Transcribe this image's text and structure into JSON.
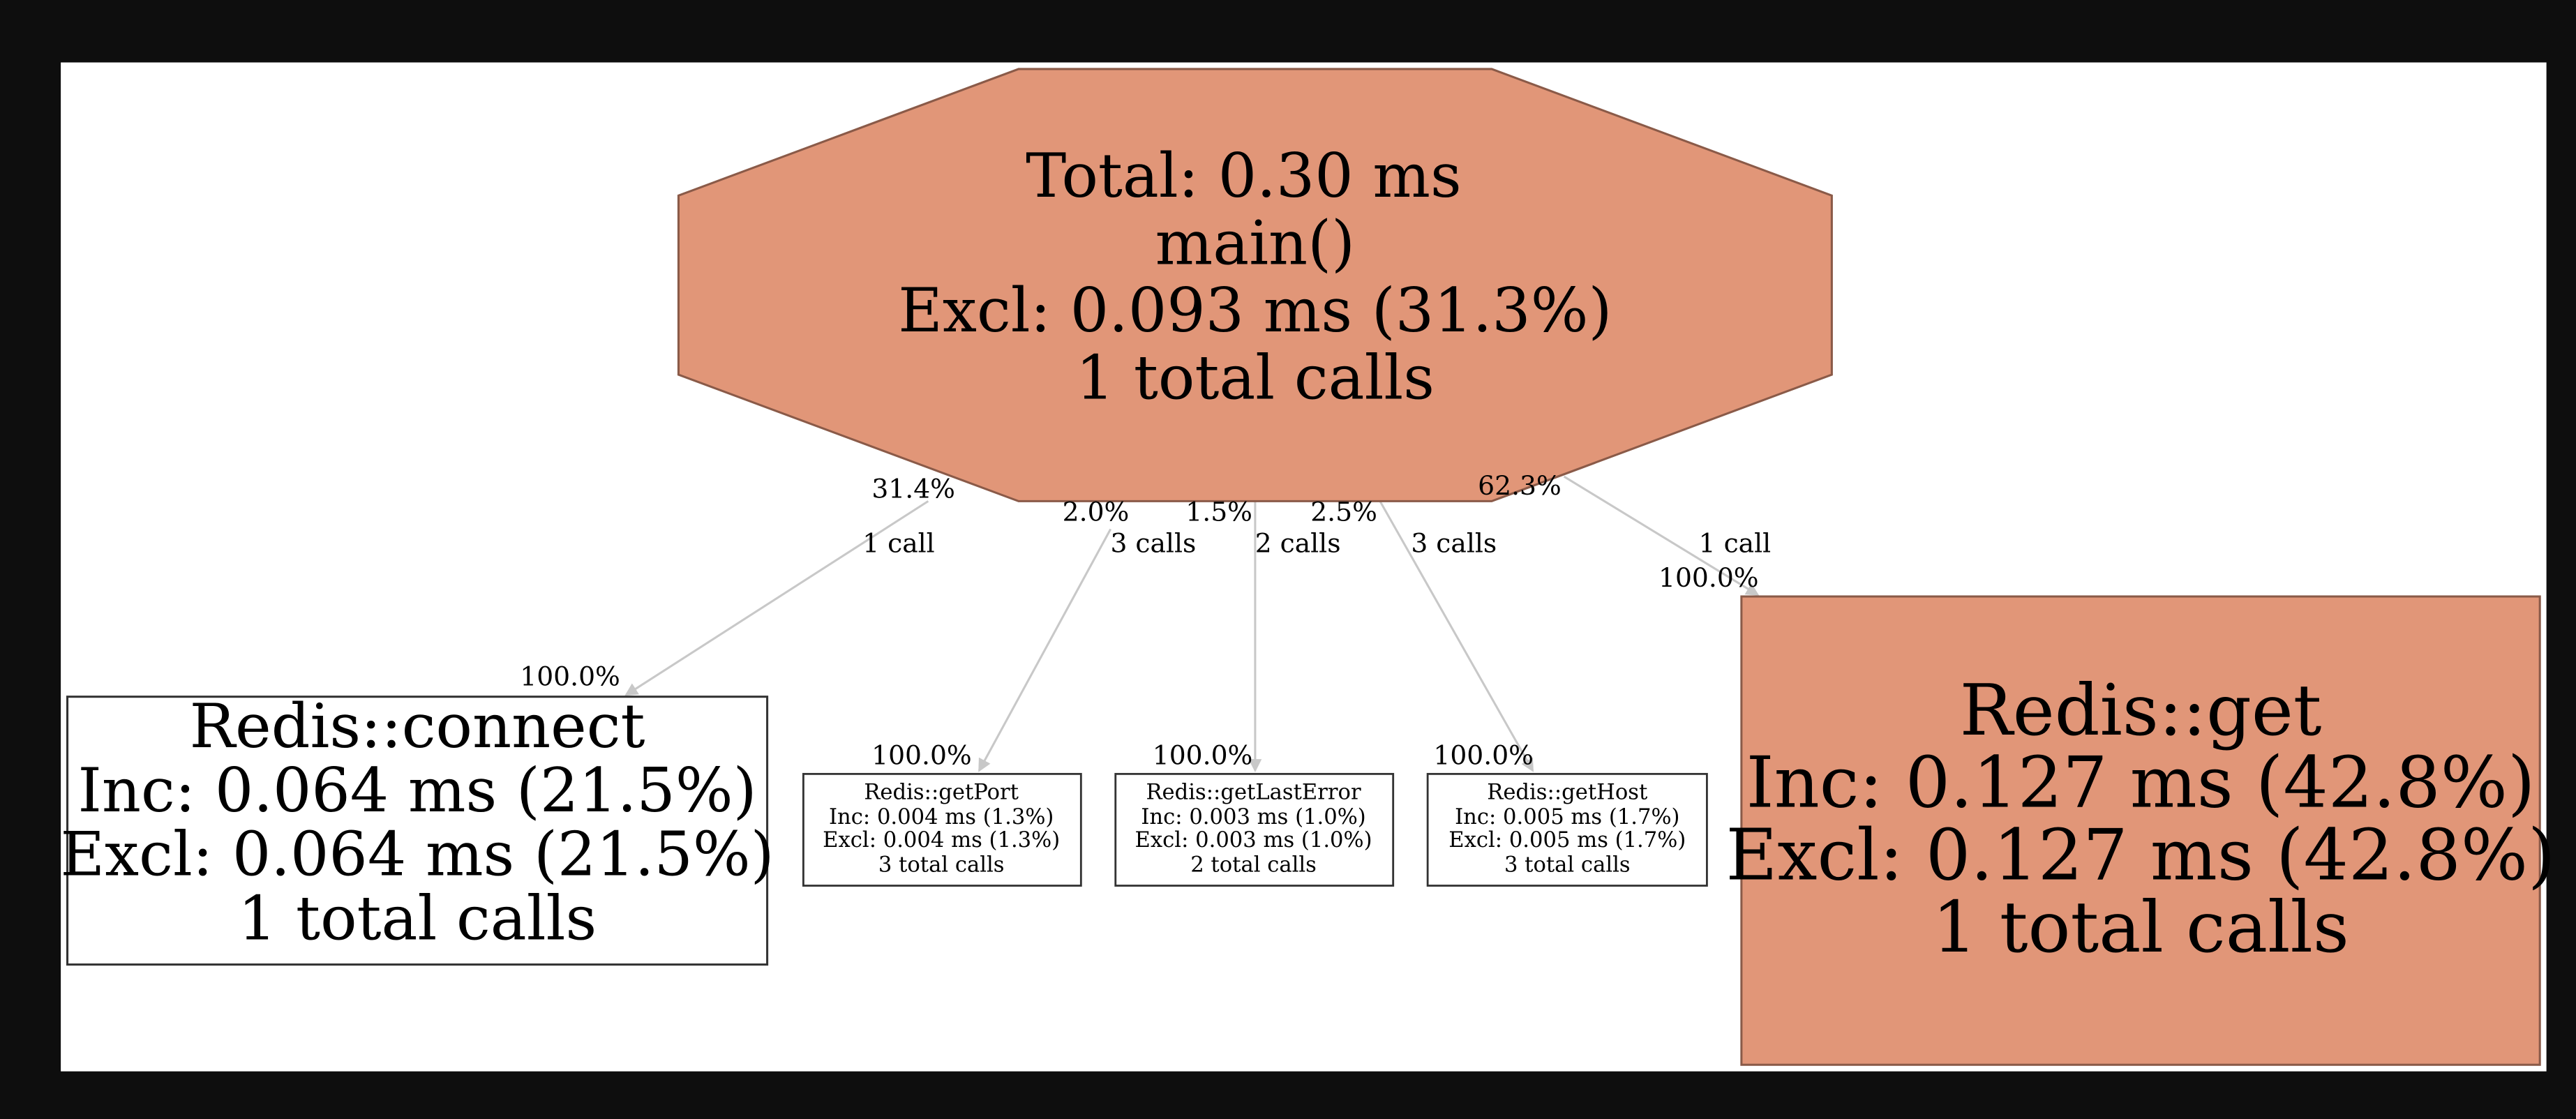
{
  "nodes": [
    {
      "id": "main",
      "lines": [
        "Total: 0.30 ms",
        "main()",
        "Excl: 0.093 ms (31.3%)",
        "1 total calls"
      ]
    },
    {
      "id": "connect",
      "lines": [
        "Redis::connect",
        "Inc: 0.064 ms (21.5%)",
        "Excl: 0.064 ms (21.5%)",
        "1 total calls"
      ]
    },
    {
      "id": "getPort",
      "lines": [
        "Redis::getPort",
        "Inc: 0.004 ms (1.3%)",
        "Excl: 0.004 ms (1.3%)",
        "3 total calls"
      ]
    },
    {
      "id": "getLastError",
      "lines": [
        "Redis::getLastError",
        "Inc: 0.003 ms (1.0%)",
        "Excl: 0.003 ms (1.0%)",
        "2 total calls"
      ]
    },
    {
      "id": "getHost",
      "lines": [
        "Redis::getHost",
        "Inc: 0.005 ms (1.7%)",
        "Excl: 0.005 ms (1.7%)",
        "3 total calls"
      ]
    },
    {
      "id": "get",
      "lines": [
        "Redis::get",
        "Inc: 0.127 ms (42.8%)",
        "Excl: 0.127 ms (42.8%)",
        "1 total calls"
      ]
    }
  ],
  "edges": [
    {
      "from": "main",
      "to": "connect",
      "out_share": "31.4%",
      "calls": "1 call",
      "in_share": "100.0%"
    },
    {
      "from": "main",
      "to": "getPort",
      "out_share": "2.0%",
      "calls": "3 calls",
      "in_share": "100.0%"
    },
    {
      "from": "main",
      "to": "getLastError",
      "out_share": "1.5%",
      "calls": "2 calls",
      "in_share": "100.0%"
    },
    {
      "from": "main",
      "to": "getHost",
      "out_share": "2.5%",
      "calls": "3 calls",
      "in_share": "100.0%"
    },
    {
      "from": "main",
      "to": "get",
      "out_share": "62.3%",
      "calls": "1 call",
      "in_share": "100.0%"
    }
  ]
}
